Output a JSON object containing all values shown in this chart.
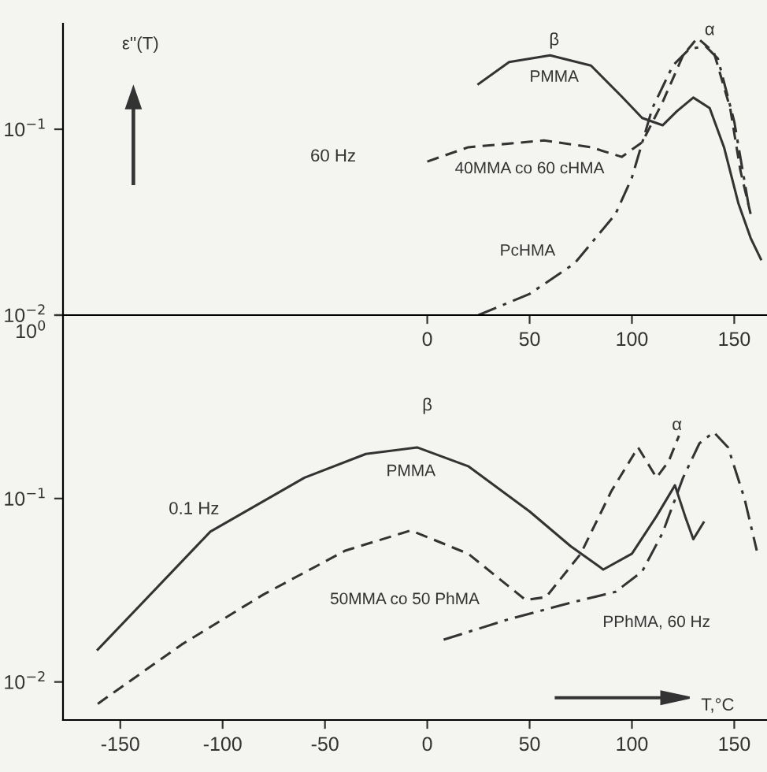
{
  "chart_data": [
    {
      "type": "line",
      "ylabel": "ε''(T)",
      "log": true,
      "grid": false,
      "legend": false,
      "xlim": [
        -178,
        166
      ],
      "ylim": [
        0.01,
        0.37
      ],
      "xticks": [
        0,
        50,
        100,
        150
      ],
      "yticks": [
        {
          "value": 0.01,
          "label": "10$^{−2}$"
        },
        {
          "value": 0.1,
          "label": "10$^{−1}$"
        }
      ],
      "series": [
        {
          "name": "PMMA",
          "color": "#333333",
          "line_style": "solid",
          "x": [
            25,
            40,
            60,
            80,
            95,
            105,
            115,
            122,
            130,
            138,
            145,
            152,
            158,
            163
          ],
          "values": [
            0.175,
            0.23,
            0.25,
            0.22,
            0.15,
            0.115,
            0.105,
            0.125,
            0.148,
            0.13,
            0.08,
            0.04,
            0.026,
            0.02
          ]
        },
        {
          "name": "40MMA co 60 cHMA",
          "color": "#333333",
          "line_style": "dashed",
          "x": [
            0,
            20,
            57,
            80,
            95,
            105,
            115,
            125,
            132,
            140,
            148,
            153,
            158
          ],
          "values": [
            0.067,
            0.08,
            0.087,
            0.08,
            0.071,
            0.085,
            0.14,
            0.25,
            0.31,
            0.26,
            0.13,
            0.06,
            0.035
          ]
        },
        {
          "name": "PcHMA",
          "color": "#333333",
          "line_style": "dashdot",
          "x": [
            25,
            50,
            72,
            92,
            100,
            110,
            120,
            128,
            136,
            142,
            150,
            157
          ],
          "values": [
            0.01,
            0.013,
            0.019,
            0.035,
            0.055,
            0.13,
            0.22,
            0.27,
            0.28,
            0.24,
            0.11,
            0.039
          ]
        }
      ],
      "annotations": [
        "β",
        "α",
        "60 Hz"
      ]
    },
    {
      "type": "line",
      "xlabel": "T,°C",
      "log": true,
      "grid": false,
      "legend": false,
      "xlim": [
        -178,
        166
      ],
      "ylim": [
        0.0062,
        1
      ],
      "xticks": [
        -150,
        -100,
        -50,
        0,
        50,
        100,
        150
      ],
      "yticks": [
        {
          "value": 0.01,
          "label": "10$^{−2}$"
        },
        {
          "value": 0.1,
          "label": "10$^{−1}$"
        },
        {
          "value": 1,
          "label": "10$^{0}$"
        }
      ],
      "series": [
        {
          "name": "PMMA",
          "color": "#333333",
          "line_style": "solid",
          "x": [
            -161,
            -106,
            -60,
            -30,
            -5,
            20,
            50,
            70,
            86,
            100,
            112,
            121,
            126,
            130,
            135
          ],
          "values": [
            0.015,
            0.066,
            0.13,
            0.175,
            0.19,
            0.15,
            0.085,
            0.055,
            0.041,
            0.05,
            0.08,
            0.118,
            0.08,
            0.06,
            0.074
          ]
        },
        {
          "name": "50MMA co 50 PhMA",
          "color": "#333333",
          "line_style": "dashed",
          "x": [
            -161,
            -120,
            -80,
            -40,
            -8,
            20,
            48,
            58,
            75,
            90,
            103,
            112,
            118,
            123
          ],
          "values": [
            0.0076,
            0.016,
            0.03,
            0.052,
            0.067,
            0.05,
            0.028,
            0.029,
            0.05,
            0.11,
            0.19,
            0.13,
            0.16,
            0.22
          ]
        },
        {
          "name": "PPhMA, 60 Hz",
          "color": "#333333",
          "line_style": "dashdot",
          "x": [
            8,
            40,
            70,
            92,
            105,
            115,
            125,
            133,
            140,
            147,
            155,
            161
          ],
          "values": [
            0.017,
            0.022,
            0.027,
            0.031,
            0.04,
            0.065,
            0.13,
            0.2,
            0.23,
            0.19,
            0.1,
            0.052
          ]
        }
      ],
      "annotations": [
        "β",
        "α",
        "0.1 Hz"
      ]
    }
  ]
}
